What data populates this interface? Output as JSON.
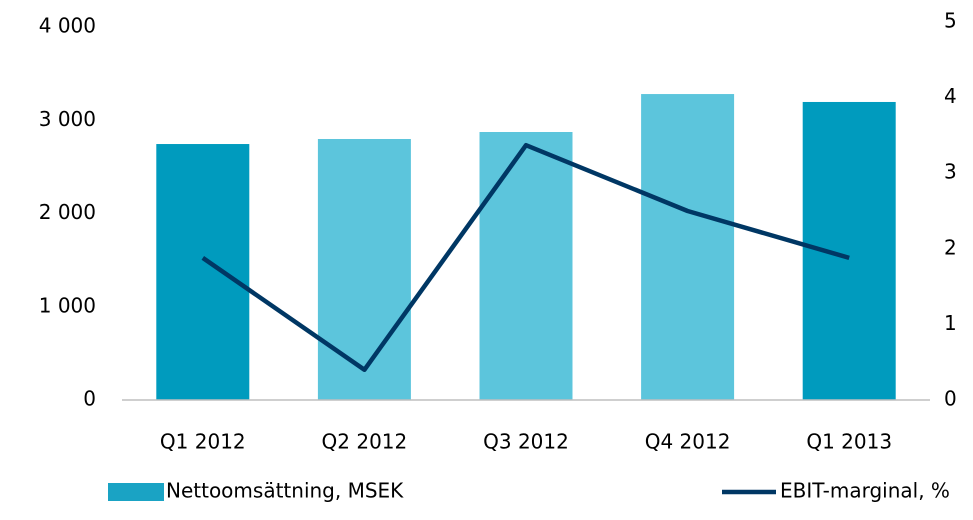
{
  "chart_data": {
    "type": "bar-line",
    "categories": [
      "Q1 2012",
      "Q2 2012",
      "Q3 2012",
      "Q4 2012",
      "Q1 2013"
    ],
    "series": [
      {
        "name": "Nettoomsättning, MSEK",
        "type": "bar",
        "color": "#1aa3c4",
        "colors": [
          "#009bbe",
          "#5cc5dc",
          "#5cc5dc",
          "#5cc5dc",
          "#009bbe"
        ],
        "values": [
          2745,
          2799,
          2874,
          3281,
          3196
        ]
      },
      {
        "name": "EBIT-marginal, %",
        "type": "line",
        "axis": "y2",
        "color": "#003764",
        "values": [
          1.88,
          0.4,
          3.37,
          2.5,
          1.88
        ]
      }
    ],
    "ylim": [
      0,
      4000
    ],
    "yticks": [
      0,
      {
        "value": 1000,
        "label": "1 000"
      },
      {
        "value": 2000,
        "label": "2 000"
      },
      {
        "value": 3000,
        "label": "3 000"
      },
      {
        "value": 4000,
        "label": "4 000"
      }
    ],
    "y2lim": [
      0,
      5
    ],
    "y2ticks": [
      0,
      1,
      2,
      3,
      4,
      5
    ],
    "legend": "bottom"
  }
}
